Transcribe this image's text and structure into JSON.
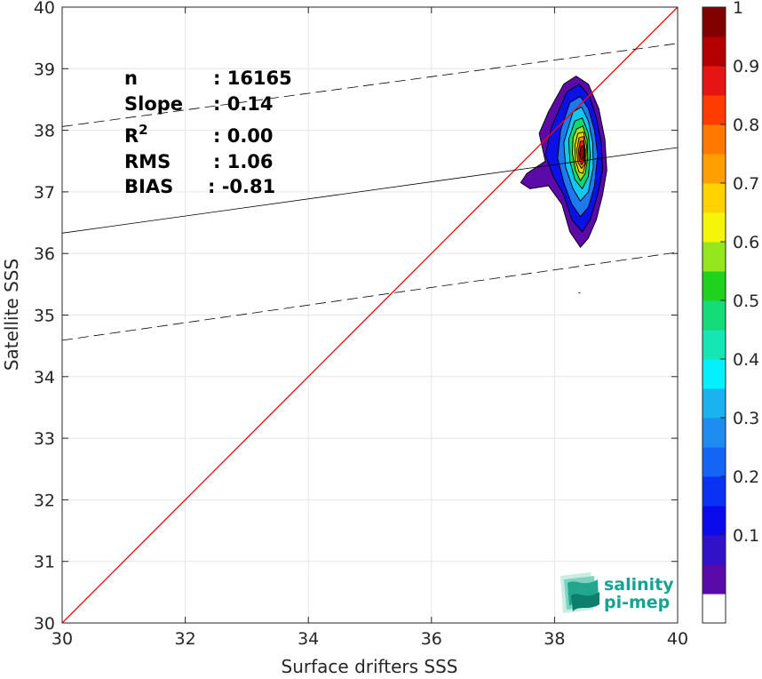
{
  "chart_data": {
    "type": "contour-scatter",
    "xlabel": "Surface drifters SSS",
    "ylabel": "Satellite SSS",
    "xlim": [
      30,
      40
    ],
    "ylim": [
      30,
      40
    ],
    "xticks": [
      "30",
      "32",
      "34",
      "36",
      "38",
      "40"
    ],
    "yticks": [
      "30",
      "31",
      "32",
      "33",
      "34",
      "35",
      "36",
      "37",
      "38",
      "39",
      "40"
    ],
    "grid": true,
    "stats": [
      {
        "label": "n",
        "value": ": 16165"
      },
      {
        "label": "Slope",
        "value": ": 0.14"
      },
      {
        "label": "R",
        "sup": "2",
        "value": ": 0.00"
      },
      {
        "label": "RMS",
        "value": ": 1.06"
      },
      {
        "label": "BIAS",
        "value": ": -0.81"
      }
    ],
    "one_to_one_line": {
      "color": "#ff0000",
      "from": [
        30,
        30
      ],
      "to": [
        40,
        40
      ]
    },
    "fit_line": {
      "from": [
        30,
        36.33
      ],
      "to": [
        40,
        37.72
      ]
    },
    "fit_upper_bound": {
      "from": [
        30,
        38.06
      ],
      "to": [
        40,
        39.41
      ]
    },
    "fit_lower_bound": {
      "from": [
        30,
        34.59
      ],
      "to": [
        40,
        36.02
      ]
    },
    "density_contours": [
      {
        "level": 0.05,
        "color": "#5b0aa8",
        "points": [
          [
            38.15,
            38.75
          ],
          [
            38.35,
            38.88
          ],
          [
            38.55,
            38.75
          ],
          [
            38.72,
            38.35
          ],
          [
            38.82,
            37.85
          ],
          [
            38.85,
            37.35
          ],
          [
            38.78,
            36.95
          ],
          [
            38.68,
            36.55
          ],
          [
            38.55,
            36.25
          ],
          [
            38.42,
            36.1
          ],
          [
            38.25,
            36.35
          ],
          [
            38.12,
            36.8
          ],
          [
            37.9,
            37.1
          ],
          [
            37.6,
            37.05
          ],
          [
            37.45,
            37.15
          ],
          [
            37.55,
            37.3
          ],
          [
            37.85,
            37.5
          ],
          [
            37.75,
            37.95
          ],
          [
            37.9,
            38.3
          ]
        ]
      },
      {
        "level": 0.15,
        "color": "#0a10e6",
        "points": [
          [
            38.2,
            38.62
          ],
          [
            38.4,
            38.75
          ],
          [
            38.57,
            38.55
          ],
          [
            38.68,
            38.2
          ],
          [
            38.76,
            37.8
          ],
          [
            38.78,
            37.35
          ],
          [
            38.7,
            36.95
          ],
          [
            38.58,
            36.55
          ],
          [
            38.45,
            36.35
          ],
          [
            38.28,
            36.55
          ],
          [
            38.15,
            36.95
          ],
          [
            37.98,
            37.25
          ],
          [
            37.85,
            37.6
          ],
          [
            37.95,
            38.05
          ]
        ]
      },
      {
        "level": 0.25,
        "color": "#1e78f0",
        "points": [
          [
            38.25,
            38.45
          ],
          [
            38.42,
            38.55
          ],
          [
            38.55,
            38.35
          ],
          [
            38.65,
            38.0
          ],
          [
            38.7,
            37.6
          ],
          [
            38.65,
            37.1
          ],
          [
            38.55,
            36.75
          ],
          [
            38.42,
            36.6
          ],
          [
            38.28,
            36.8
          ],
          [
            38.15,
            37.15
          ],
          [
            38.05,
            37.55
          ],
          [
            38.1,
            38.0
          ]
        ]
      },
      {
        "level": 0.35,
        "color": "#12c8f0",
        "points": [
          [
            38.3,
            38.3
          ],
          [
            38.44,
            38.38
          ],
          [
            38.55,
            38.15
          ],
          [
            38.62,
            37.8
          ],
          [
            38.63,
            37.4
          ],
          [
            38.55,
            37.0
          ],
          [
            38.42,
            36.85
          ],
          [
            38.3,
            37.05
          ],
          [
            38.18,
            37.4
          ],
          [
            38.15,
            37.8
          ]
        ]
      },
      {
        "level": 0.5,
        "color": "#14d86a",
        "points": [
          [
            38.33,
            38.15
          ],
          [
            38.45,
            38.2
          ],
          [
            38.55,
            37.95
          ],
          [
            38.58,
            37.6
          ],
          [
            38.55,
            37.25
          ],
          [
            38.45,
            37.05
          ],
          [
            38.33,
            37.2
          ],
          [
            38.25,
            37.5
          ],
          [
            38.23,
            37.85
          ]
        ]
      },
      {
        "level": 0.6,
        "color": "#a8e020",
        "points": [
          [
            38.36,
            38.02
          ],
          [
            38.46,
            38.07
          ],
          [
            38.53,
            37.85
          ],
          [
            38.54,
            37.55
          ],
          [
            38.5,
            37.3
          ],
          [
            38.42,
            37.18
          ],
          [
            38.34,
            37.35
          ],
          [
            38.29,
            37.62
          ],
          [
            38.3,
            37.88
          ]
        ]
      },
      {
        "level": 0.7,
        "color": "#ffd200",
        "points": [
          [
            38.38,
            37.95
          ],
          [
            38.47,
            37.97
          ],
          [
            38.52,
            37.75
          ],
          [
            38.51,
            37.48
          ],
          [
            38.46,
            37.3
          ],
          [
            38.4,
            37.32
          ],
          [
            38.34,
            37.5
          ],
          [
            38.33,
            37.75
          ]
        ]
      },
      {
        "level": 0.8,
        "color": "#ff8c00",
        "points": [
          [
            38.4,
            37.88
          ],
          [
            38.47,
            37.9
          ],
          [
            38.5,
            37.68
          ],
          [
            38.49,
            37.45
          ],
          [
            38.44,
            37.38
          ],
          [
            38.38,
            37.48
          ],
          [
            38.36,
            37.68
          ]
        ]
      },
      {
        "level": 0.9,
        "color": "#ff2010",
        "points": [
          [
            38.42,
            37.82
          ],
          [
            38.47,
            37.83
          ],
          [
            38.49,
            37.65
          ],
          [
            38.48,
            37.5
          ],
          [
            38.44,
            37.44
          ],
          [
            38.4,
            37.52
          ],
          [
            38.39,
            37.68
          ]
        ]
      },
      {
        "level": 0.95,
        "color": "#a00000",
        "points": [
          [
            38.43,
            37.74
          ],
          [
            38.47,
            37.75
          ],
          [
            38.48,
            37.62
          ],
          [
            38.46,
            37.53
          ],
          [
            38.43,
            37.53
          ],
          [
            38.41,
            37.62
          ]
        ]
      }
    ],
    "colorbar": {
      "ticks": [
        "0.1",
        "0.2",
        "0.3",
        "0.4",
        "0.5",
        "0.6",
        "0.7",
        "0.8",
        "0.9",
        "1"
      ],
      "tick_values": [
        0.1,
        0.2,
        0.3,
        0.4,
        0.5,
        0.6,
        0.7,
        0.8,
        0.9,
        1.0
      ],
      "colors": [
        "#ffffff",
        "#5a0aa8",
        "#3212c8",
        "#0a0aeb",
        "#0a32f5",
        "#1464f5",
        "#1e8cf0",
        "#19b4f0",
        "#05f0ff",
        "#14e6b4",
        "#14dc78",
        "#1ed21e",
        "#96e61e",
        "#f5f50a",
        "#ffd200",
        "#ffa000",
        "#ff7800",
        "#ff3c00",
        "#e61414",
        "#b40000",
        "#820000"
      ]
    },
    "logo": {
      "line1": "salinity",
      "line2": "pi-mep"
    }
  }
}
